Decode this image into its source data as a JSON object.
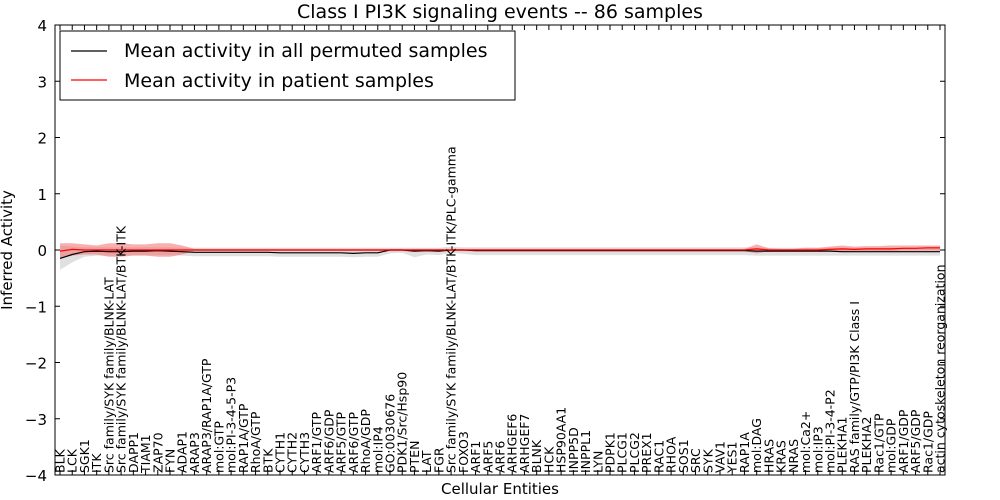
{
  "chart_data": {
    "type": "line",
    "title": "Class I PI3K signaling events -- 86 samples",
    "xlabel": "Cellular Entities",
    "ylabel": "Inferred Activity",
    "ylim": [
      -4,
      4
    ],
    "yticks": [
      4,
      3,
      2,
      1,
      0,
      -1,
      -2,
      -3,
      -4
    ],
    "ytick_labels": [
      "4",
      "3",
      "2",
      "1",
      "0",
      "−1",
      "−2",
      "−3",
      "−4"
    ],
    "legend": {
      "placement": "top-left",
      "entries": [
        {
          "label": "Mean activity in all permuted samples",
          "color": "#000000"
        },
        {
          "label": "Mean activity in patient samples",
          "color": "#ff0000"
        }
      ]
    },
    "categories": [
      "BLK",
      "LCK",
      "SGK1",
      "ITK",
      "Src family/SYK family/BLNK-LAT",
      "Src family/SYK family/BLNK-LAT/BTK-ITK",
      "DAPP1",
      "TIAM1",
      "ZAP70",
      "FYN",
      "ADAP1",
      "ARAP3",
      "ARAP3/RAP1A/GTP",
      "mol:GTP",
      "mol:PI-3-4-5-P3",
      "RAP1A/GTP",
      "RhoA/GTP",
      "BTK",
      "CYTH1",
      "CYTH2",
      "CYTH3",
      "ARF1/GTP",
      "ARF6/GDP",
      "ARF5/GTP",
      "ARF6/GTP",
      "RhoA/GDP",
      "mol:IP4",
      "GO:0030676",
      "PDK1/Src/Hsp90",
      "PTEN",
      "LAT",
      "FGR",
      "Src family/SYK family/BLNK-LAT/BTK-ITK/PLC-gamma",
      "FOXO3",
      "ARF1",
      "ARF5",
      "ARF6",
      "ARHGEF6",
      "ARHGEF7",
      "BLNK",
      "HCK",
      "HSP90AA1",
      "INPP5D",
      "INPPL1",
      "LYN",
      "PDPK1",
      "PLCG1",
      "PLCG2",
      "PREX1",
      "RAC1",
      "RHOA",
      "SOS1",
      "SRC",
      "SYK",
      "VAV1",
      "YES1",
      "RAP1A",
      "mol:DAG",
      "HRAS",
      "KRAS",
      "NRAS",
      "mol:Ca2+",
      "mol:IP3",
      "mol:PI-3-4-P2",
      "PLEKHA1",
      "RAS family/GTP/PI3K Class I",
      "PLEKHA2",
      "Rac1/GTP",
      "mol:GDP",
      "ARF1/GDP",
      "ARF5/GDP",
      "Rac1/GDP",
      "actin cytoskeleton reorganization"
    ],
    "series": [
      {
        "name": "Mean activity in all permuted samples",
        "color": "#000000",
        "values": [
          -0.15,
          -0.08,
          -0.03,
          -0.02,
          -0.03,
          -0.03,
          -0.02,
          -0.02,
          -0.01,
          -0.02,
          -0.03,
          -0.04,
          -0.04,
          -0.04,
          -0.04,
          -0.04,
          -0.04,
          -0.04,
          -0.05,
          -0.05,
          -0.05,
          -0.05,
          -0.05,
          -0.05,
          -0.06,
          -0.05,
          -0.05,
          0.0,
          0.0,
          -0.02,
          -0.01,
          -0.02,
          0.0,
          0.0,
          -0.01,
          -0.01,
          -0.01,
          -0.01,
          -0.01,
          -0.01,
          -0.01,
          -0.01,
          -0.01,
          -0.01,
          -0.01,
          -0.01,
          -0.01,
          -0.01,
          -0.01,
          -0.01,
          -0.01,
          -0.01,
          -0.01,
          -0.01,
          -0.01,
          -0.01,
          -0.01,
          -0.02,
          -0.02,
          -0.02,
          -0.02,
          -0.02,
          -0.02,
          -0.02,
          -0.03,
          -0.03,
          -0.03,
          -0.03,
          -0.03,
          -0.03,
          -0.03,
          -0.03,
          -0.03
        ]
      },
      {
        "name": "Mean activity in patient samples",
        "color": "#ff0000",
        "values": [
          -0.02,
          0.01,
          0.0,
          0.0,
          0.0,
          0.0,
          0.0,
          0.0,
          0.0,
          0.0,
          0.0,
          0.0,
          0.0,
          0.0,
          0.0,
          0.0,
          0.0,
          0.0,
          0.0,
          0.0,
          0.0,
          0.0,
          0.0,
          0.0,
          0.0,
          0.0,
          0.0,
          0.0,
          0.0,
          0.0,
          0.0,
          0.0,
          0.0,
          0.0,
          0.0,
          0.0,
          0.0,
          0.0,
          0.0,
          0.0,
          0.0,
          0.0,
          0.0,
          0.0,
          0.0,
          0.0,
          0.0,
          0.0,
          0.0,
          0.0,
          0.0,
          0.0,
          0.0,
          0.0,
          0.0,
          0.0,
          0.0,
          0.02,
          0.0,
          0.0,
          0.0,
          0.0,
          0.0,
          0.01,
          0.02,
          0.01,
          0.02,
          0.02,
          0.02,
          0.03,
          0.03,
          0.04,
          0.04
        ]
      }
    ],
    "bands": [
      {
        "name": "permuted spread",
        "color": "#cccccc",
        "upper": [
          0.08,
          0.06,
          0.05,
          0.05,
          0.05,
          0.05,
          0.05,
          0.05,
          0.05,
          0.05,
          0.04,
          0.04,
          0.04,
          0.04,
          0.04,
          0.04,
          0.04,
          0.04,
          0.04,
          0.04,
          0.04,
          0.04,
          0.04,
          0.04,
          0.04,
          0.04,
          0.04,
          0.04,
          0.04,
          0.04,
          0.04,
          0.04,
          0.06,
          0.05,
          0.05,
          0.05,
          0.05,
          0.05,
          0.05,
          0.05,
          0.05,
          0.05,
          0.05,
          0.05,
          0.05,
          0.05,
          0.05,
          0.05,
          0.05,
          0.05,
          0.05,
          0.05,
          0.05,
          0.05,
          0.05,
          0.05,
          0.05,
          0.04,
          0.04,
          0.04,
          0.04,
          0.04,
          0.04,
          0.04,
          0.04,
          0.04,
          0.04,
          0.04,
          0.04,
          0.04,
          0.04,
          0.04,
          0.04
        ],
        "lower": [
          -0.35,
          -0.22,
          -0.12,
          -0.1,
          -0.1,
          -0.1,
          -0.09,
          -0.09,
          -0.09,
          -0.09,
          -0.1,
          -0.11,
          -0.11,
          -0.11,
          -0.11,
          -0.11,
          -0.11,
          -0.11,
          -0.12,
          -0.12,
          -0.12,
          -0.12,
          -0.12,
          -0.12,
          -0.13,
          -0.12,
          -0.12,
          -0.06,
          -0.05,
          -0.13,
          -0.08,
          -0.09,
          -0.05,
          -0.07,
          -0.09,
          -0.09,
          -0.09,
          -0.09,
          -0.09,
          -0.09,
          -0.09,
          -0.09,
          -0.09,
          -0.09,
          -0.09,
          -0.09,
          -0.09,
          -0.09,
          -0.09,
          -0.09,
          -0.09,
          -0.09,
          -0.09,
          -0.09,
          -0.09,
          -0.09,
          -0.09,
          -0.1,
          -0.1,
          -0.1,
          -0.1,
          -0.1,
          -0.1,
          -0.1,
          -0.1,
          -0.1,
          -0.1,
          -0.1,
          -0.1,
          -0.1,
          -0.1,
          -0.1,
          -0.1
        ]
      },
      {
        "name": "patient spread",
        "color": "#f26d6d",
        "upper": [
          0.12,
          0.12,
          0.1,
          0.08,
          0.12,
          0.12,
          0.1,
          0.1,
          0.12,
          0.12,
          0.08,
          0.02,
          0.02,
          0.02,
          0.02,
          0.02,
          0.02,
          0.02,
          0.02,
          0.02,
          0.02,
          0.02,
          0.02,
          0.02,
          0.02,
          0.02,
          0.02,
          0.02,
          0.02,
          0.02,
          0.02,
          0.02,
          0.02,
          0.02,
          0.02,
          0.02,
          0.02,
          0.02,
          0.02,
          0.02,
          0.02,
          0.02,
          0.02,
          0.02,
          0.02,
          0.02,
          0.02,
          0.02,
          0.02,
          0.02,
          0.02,
          0.02,
          0.02,
          0.02,
          0.02,
          0.02,
          0.02,
          0.1,
          0.03,
          0.02,
          0.02,
          0.04,
          0.04,
          0.06,
          0.08,
          0.06,
          0.07,
          0.07,
          0.08,
          0.08,
          0.08,
          0.08,
          0.08
        ],
        "lower": [
          -0.15,
          -0.1,
          -0.08,
          -0.08,
          -0.12,
          -0.12,
          -0.1,
          -0.1,
          -0.12,
          -0.12,
          -0.08,
          -0.02,
          -0.02,
          -0.02,
          -0.02,
          -0.02,
          -0.02,
          -0.02,
          -0.02,
          -0.02,
          -0.02,
          -0.02,
          -0.02,
          -0.02,
          -0.02,
          -0.02,
          -0.02,
          -0.02,
          -0.02,
          -0.02,
          -0.02,
          -0.02,
          -0.02,
          -0.02,
          -0.02,
          -0.02,
          -0.02,
          -0.02,
          -0.02,
          -0.02,
          -0.02,
          -0.02,
          -0.02,
          -0.02,
          -0.02,
          -0.02,
          -0.02,
          -0.02,
          -0.02,
          -0.02,
          -0.02,
          -0.02,
          -0.02,
          -0.02,
          -0.02,
          -0.02,
          -0.02,
          -0.06,
          -0.02,
          -0.02,
          -0.02,
          -0.02,
          -0.02,
          -0.02,
          -0.03,
          -0.02,
          -0.02,
          -0.02,
          -0.02,
          -0.01,
          -0.01,
          -0.01,
          -0.01
        ]
      }
    ]
  }
}
